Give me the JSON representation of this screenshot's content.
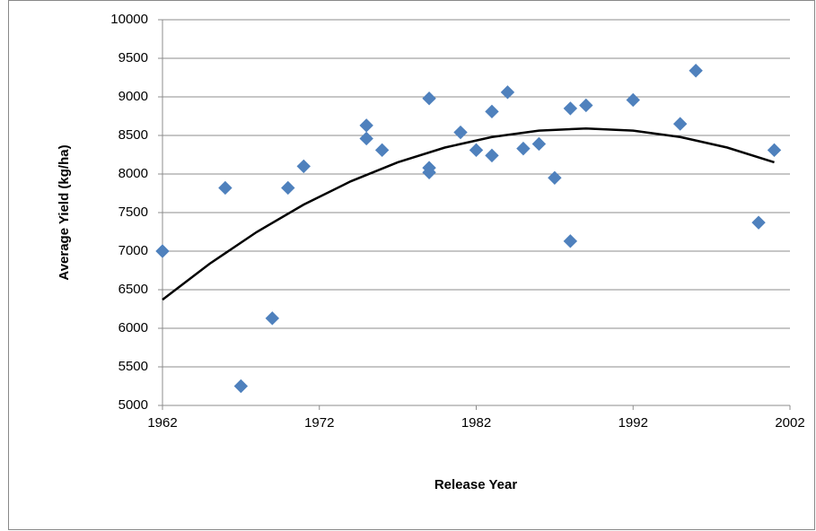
{
  "chart_data": {
    "type": "scatter",
    "x_label": "Release Year",
    "y_label": "Average Yield (kg/ha)",
    "xlim": [
      1962,
      2002
    ],
    "xticks": [
      1962,
      1972,
      1982,
      1992,
      2002
    ],
    "ylim": [
      5000,
      10000
    ],
    "yticks": [
      5000,
      5500,
      6000,
      6500,
      7000,
      7500,
      8000,
      8500,
      9000,
      9500,
      10000
    ],
    "grid": true,
    "series": [
      {
        "color": "#4f81bd",
        "x": [
          1962,
          1966,
          1967,
          1969,
          1970,
          1971,
          1975,
          1975,
          1976,
          1979,
          1979,
          1979,
          1981,
          1982,
          1983,
          1983,
          1984,
          1985,
          1986,
          1987,
          1988,
          1988,
          1989,
          1992,
          1995,
          1996,
          2000,
          2001
        ],
        "values": [
          7000,
          7820,
          5250,
          6130,
          7820,
          8100,
          8630,
          8460,
          8310,
          8980,
          8080,
          8020,
          8540,
          8310,
          8810,
          8240,
          9060,
          8330,
          8390,
          7950,
          8850,
          7130,
          8890,
          8960,
          8650,
          9340,
          7370,
          8310
        ]
      }
    ],
    "trendline": {
      "color": "#000000",
      "x": [
        1962,
        1965,
        1968,
        1971,
        1974,
        1977,
        1980,
        1983,
        1986,
        1989,
        1992,
        1995,
        1998,
        2001
      ],
      "values": [
        6370,
        6836,
        7247,
        7603,
        7905,
        8152,
        8343,
        8480,
        8563,
        8590,
        8563,
        8480,
        8343,
        8152
      ]
    }
  }
}
